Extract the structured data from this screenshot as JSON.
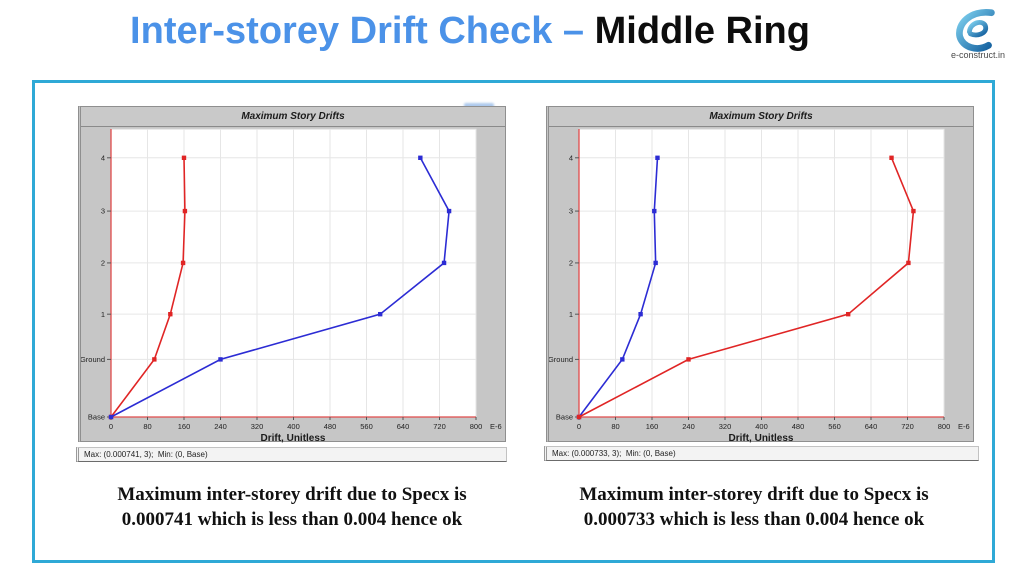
{
  "slide": {
    "title_blue": "Inter-storey Drift Check – ",
    "title_black": "Middle Ring",
    "accent_color": "#4b92e8",
    "frame_color": "#2fa9d6",
    "logo_text": "e-construct.in"
  },
  "chart_data": [
    {
      "type": "line",
      "title": "Maximum Story Drifts",
      "xlabel": "Drift, Unitless",
      "ylabel": "",
      "x_ticks": [
        0,
        80,
        160,
        240,
        320,
        400,
        480,
        560,
        640,
        720,
        800
      ],
      "x_tick_suffix": "E-6",
      "xlim": [
        0,
        800
      ],
      "grid": true,
      "legend": "none",
      "marker": "square",
      "axis_color": "#e04b4b",
      "categories": [
        "Base",
        "Ground",
        "1",
        "2",
        "3",
        "4"
      ],
      "series": [
        {
          "name": "drift-red",
          "color": "#e02525",
          "values": [
            0,
            95,
            130,
            158,
            162,
            160
          ]
        },
        {
          "name": "drift-blue",
          "color": "#2c2cd4",
          "values": [
            0,
            240,
            590,
            730,
            741,
            678
          ]
        }
      ],
      "status": "Max: (0.000741, 3);  Min: (0, Base)"
    },
    {
      "type": "line",
      "title": "Maximum Story Drifts",
      "xlabel": "Drift, Unitless",
      "ylabel": "",
      "x_ticks": [
        0,
        80,
        160,
        240,
        320,
        400,
        480,
        560,
        640,
        720,
        800
      ],
      "x_tick_suffix": "E-6",
      "xlim": [
        0,
        800
      ],
      "grid": true,
      "legend": "none",
      "marker": "square",
      "axis_color": "#e04b4b",
      "categories": [
        "Base",
        "Ground",
        "1",
        "2",
        "3",
        "4"
      ],
      "series": [
        {
          "name": "drift-blue",
          "color": "#2c2cd4",
          "values": [
            0,
            95,
            135,
            168,
            165,
            172
          ]
        },
        {
          "name": "drift-red",
          "color": "#e02525",
          "values": [
            0,
            240,
            590,
            722,
            733,
            685
          ]
        }
      ],
      "status": "Max: (0.000733, 3);  Min: (0, Base)"
    }
  ],
  "captions": [
    {
      "line1": "Maximum inter-storey drift due to Specx is",
      "line2": "0.000741 which is less than 0.004 hence ok"
    },
    {
      "line1": "Maximum inter-storey drift due to Specx is",
      "line2": "0.000733 which is less than 0.004 hence ok"
    }
  ]
}
